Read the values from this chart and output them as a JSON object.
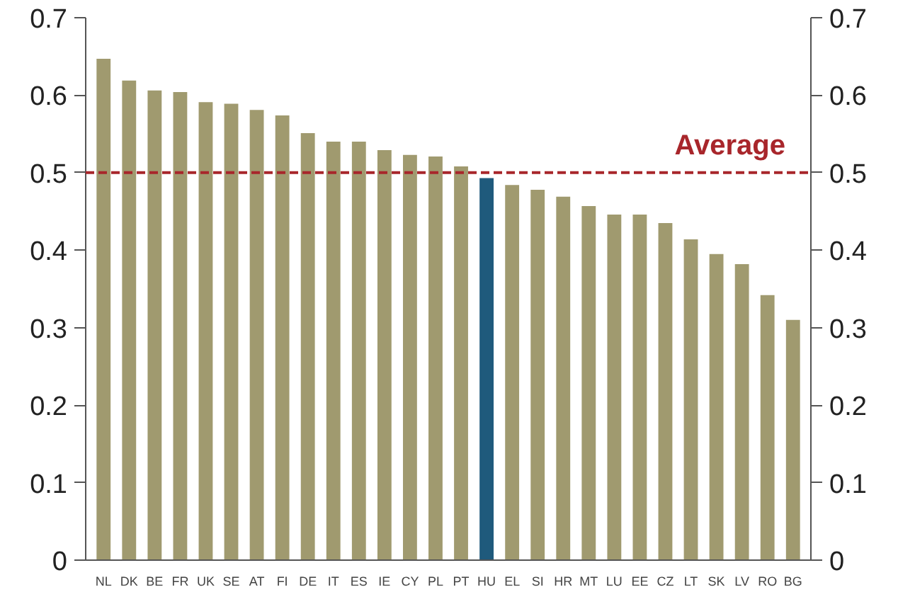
{
  "chart_data": {
    "type": "bar",
    "categories": [
      "NL",
      "DK",
      "BE",
      "FR",
      "UK",
      "SE",
      "AT",
      "FI",
      "DE",
      "IT",
      "ES",
      "IE",
      "CY",
      "PL",
      "PT",
      "HU",
      "EL",
      "SI",
      "HR",
      "MT",
      "LU",
      "EE",
      "CZ",
      "LT",
      "SK",
      "LV",
      "RO",
      "BG"
    ],
    "values": [
      0.647,
      0.619,
      0.606,
      0.604,
      0.591,
      0.589,
      0.581,
      0.574,
      0.551,
      0.54,
      0.54,
      0.529,
      0.523,
      0.521,
      0.508,
      0.493,
      0.484,
      0.478,
      0.469,
      0.457,
      0.446,
      0.446,
      0.435,
      0.414,
      0.395,
      0.382,
      0.342,
      0.31
    ],
    "colors": [
      "#a09a6f",
      "#a09a6f",
      "#a09a6f",
      "#a09a6f",
      "#a09a6f",
      "#a09a6f",
      "#a09a6f",
      "#a09a6f",
      "#a09a6f",
      "#a09a6f",
      "#a09a6f",
      "#a09a6f",
      "#a09a6f",
      "#a09a6f",
      "#a09a6f",
      "#1f5a7c",
      "#a09a6f",
      "#a09a6f",
      "#a09a6f",
      "#a09a6f",
      "#a09a6f",
      "#a09a6f",
      "#a09a6f",
      "#a09a6f",
      "#a09a6f",
      "#a09a6f",
      "#a09a6f",
      "#a09a6f"
    ],
    "ylim": [
      0,
      0.7
    ],
    "yticks": [
      0,
      0.1,
      0.2,
      0.3,
      0.4,
      0.5,
      0.6,
      0.7
    ],
    "y2lim": [
      0,
      0.7
    ],
    "y2ticks": [
      0,
      0.1,
      0.2,
      0.3,
      0.4,
      0.5,
      0.6,
      0.7
    ],
    "ref_lines": [
      {
        "axis": "y",
        "value": 0.5,
        "label": "Average",
        "color": "#a8262b",
        "line_style": "dashed"
      }
    ],
    "grid": false
  }
}
